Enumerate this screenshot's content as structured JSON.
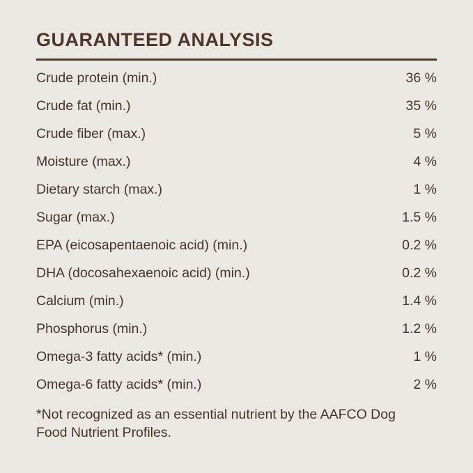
{
  "title": "GUARANTEED ANALYSIS",
  "rows": [
    {
      "label": "Crude protein (min.)",
      "value": "36 %"
    },
    {
      "label": "Crude fat (min.)",
      "value": "35 %"
    },
    {
      "label": "Crude fiber (max.)",
      "value": "5 %"
    },
    {
      "label": "Moisture (max.)",
      "value": "4 %"
    },
    {
      "label": "Dietary starch (max.)",
      "value": "1 %"
    },
    {
      "label": "Sugar (max.)",
      "value": "1.5 %"
    },
    {
      "label": "EPA (eicosapentaenoic acid) (min.)",
      "value": "0.2 %"
    },
    {
      "label": "DHA (docosahexaenoic acid) (min.)",
      "value": "0.2 %"
    },
    {
      "label": "Calcium (min.)",
      "value": "1.4 %"
    },
    {
      "label": "Phosphorus (min.)",
      "value": "1.2 %"
    },
    {
      "label": "Omega-3 fatty acids* (min.)",
      "value": "1 %"
    },
    {
      "label": "Omega-6 fatty acids* (min.)",
      "value": "2 %"
    }
  ],
  "footnote": "*Not recognized as an essential nutrient by the AAFCO Dog Food Nutrient Profiles.",
  "colors": {
    "background": "#ebe7e2",
    "heading": "#4e372a",
    "body_text": "#44352b",
    "rule": "#4e372a"
  },
  "chart_data": {
    "type": "table",
    "title": "GUARANTEED ANALYSIS",
    "categories": [
      "Crude protein (min.)",
      "Crude fat (min.)",
      "Crude fiber (max.)",
      "Moisture (max.)",
      "Dietary starch (max.)",
      "Sugar (max.)",
      "EPA (eicosapentaenoic acid) (min.)",
      "DHA (docosahexaenoic acid) (min.)",
      "Calcium (min.)",
      "Phosphorus (min.)",
      "Omega-3 fatty acids* (min.)",
      "Omega-6 fatty acids* (min.)"
    ],
    "values": [
      36,
      35,
      5,
      4,
      1,
      1.5,
      0.2,
      0.2,
      1.4,
      1.2,
      1,
      2
    ],
    "unit": "%"
  }
}
